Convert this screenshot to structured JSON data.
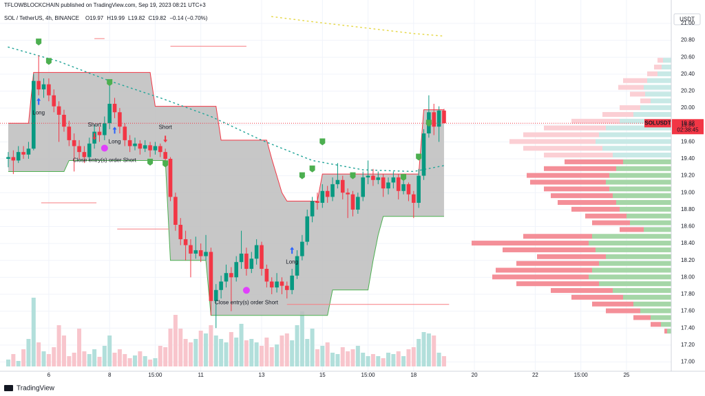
{
  "header": {
    "author_line": "TFLOWBLOCKCHAIN published on TradingView.com, Sep 19, 2023 08:21 UTC+3",
    "symbol": "SOL / TetherUS, 4h, BINANCE",
    "ohlc": [
      "O19.97",
      "H19.99",
      "L19.82",
      "C19.82",
      "−0.14 (−0.70%)"
    ],
    "currency": "USDT",
    "ticker": "SOLUSDT",
    "countdown": "02:38:45"
  },
  "footer": {
    "brand": "TradingView"
  },
  "chart_data": {
    "type": "candlestick",
    "up_color": "#089981",
    "down_color": "#f23645",
    "up_volume_color": "#b2dfdb",
    "down_volume_color": "#f8c5cc",
    "ylim": [
      16.89,
      21.13
    ],
    "yticks": [
      {
        "value": 17,
        "label": "17.00"
      },
      {
        "value": 17.2,
        "label": "17.20"
      },
      {
        "value": 17.4,
        "label": "17.40"
      },
      {
        "value": 17.6,
        "label": "17.60"
      },
      {
        "value": 17.8,
        "label": "17.80"
      },
      {
        "value": 18,
        "label": "18.00"
      },
      {
        "value": 18.2,
        "label": "18.20"
      },
      {
        "value": 18.4,
        "label": "18.40"
      },
      {
        "value": 18.6,
        "label": "18.60"
      },
      {
        "value": 18.8,
        "label": "18.80"
      },
      {
        "value": 19,
        "label": "19.00"
      },
      {
        "value": 19.2,
        "label": "19.20"
      },
      {
        "value": 19.4,
        "label": "19.40"
      },
      {
        "value": 19.6,
        "label": "19.60"
      },
      {
        "value": 19.8,
        "label": "19.80"
      },
      {
        "value": 20,
        "label": "20.00"
      },
      {
        "value": 20.2,
        "label": "20.20"
      },
      {
        "value": 20.4,
        "label": "20.40"
      },
      {
        "value": 20.6,
        "label": "20.60"
      },
      {
        "value": 20.8,
        "label": "20.80"
      },
      {
        "value": 21,
        "label": "21.00"
      }
    ],
    "xticks": [
      {
        "value": 8,
        "label": "6"
      },
      {
        "value": 20,
        "label": "8"
      },
      {
        "value": 29,
        "label": "15:00"
      },
      {
        "value": 38,
        "label": "11"
      },
      {
        "value": 50,
        "label": "13"
      },
      {
        "value": 62,
        "label": "15"
      },
      {
        "value": 71,
        "label": "15:00"
      },
      {
        "value": 80,
        "label": "18"
      },
      {
        "value": 92,
        "label": "20"
      },
      {
        "value": 104,
        "label": "22"
      },
      {
        "value": 113,
        "label": "15:00"
      },
      {
        "value": 122,
        "label": "25"
      }
    ],
    "grid": true,
    "candles": [
      [
        19.4,
        19.48,
        19.3,
        19.42
      ],
      [
        19.42,
        19.5,
        19.22,
        19.38
      ],
      [
        19.38,
        19.55,
        19.35,
        19.48
      ],
      [
        19.48,
        19.55,
        19.4,
        19.45
      ],
      [
        19.45,
        19.6,
        19.4,
        19.52
      ],
      [
        19.52,
        20.4,
        19.5,
        20.32
      ],
      [
        20.32,
        20.62,
        20.15,
        20.22
      ],
      [
        20.22,
        20.35,
        20.12,
        20.28
      ],
      [
        20.28,
        20.35,
        20.08,
        20.15
      ],
      [
        20.15,
        20.22,
        19.95,
        20.02
      ],
      [
        20.02,
        20.08,
        19.6,
        19.92
      ],
      [
        19.92,
        19.98,
        19.72,
        19.78
      ],
      [
        19.78,
        19.85,
        19.55,
        19.62
      ],
      [
        19.62,
        19.7,
        19.25,
        19.55
      ],
      [
        19.55,
        19.62,
        19.4,
        19.48
      ],
      [
        19.48,
        19.55,
        19.35,
        19.42
      ],
      [
        19.42,
        19.65,
        19.38,
        19.58
      ],
      [
        19.58,
        19.8,
        19.52,
        19.72
      ],
      [
        19.72,
        19.78,
        19.6,
        19.68
      ],
      [
        19.68,
        19.9,
        19.62,
        19.82
      ],
      [
        19.82,
        20.28,
        19.75,
        20.05
      ],
      [
        20.05,
        20.12,
        19.88,
        19.95
      ],
      [
        19.95,
        20,
        19.7,
        19.78
      ],
      [
        19.78,
        19.82,
        19.55,
        19.62
      ],
      [
        19.62,
        19.68,
        19.48,
        19.55
      ],
      [
        19.55,
        19.65,
        19.5,
        19.58
      ],
      [
        19.58,
        19.62,
        19.45,
        19.52
      ],
      [
        19.52,
        19.62,
        19.48,
        19.56
      ],
      [
        19.56,
        19.6,
        19.42,
        19.5
      ],
      [
        19.5,
        19.6,
        19.45,
        19.55
      ],
      [
        19.55,
        19.58,
        19.42,
        19.48
      ],
      [
        19.48,
        19.52,
        19.35,
        19.4
      ],
      [
        19.4,
        19.42,
        18.9,
        18.95
      ],
      [
        18.95,
        19,
        18.55,
        18.62
      ],
      [
        18.62,
        18.7,
        18.38,
        18.45
      ],
      [
        18.45,
        18.55,
        18.2,
        18.38
      ],
      [
        18.38,
        18.45,
        18,
        18.28
      ],
      [
        18.28,
        18.48,
        18.22,
        18.32
      ],
      [
        18.32,
        18.4,
        18.18,
        18.25
      ],
      [
        18.25,
        18.5,
        18.2,
        18.3
      ],
      [
        18.3,
        18.35,
        17.55,
        17.72
      ],
      [
        17.72,
        17.92,
        17.4,
        17.85
      ],
      [
        17.85,
        18.02,
        17.75,
        17.95
      ],
      [
        17.95,
        18.15,
        17.88,
        18.05
      ],
      [
        18.05,
        18.12,
        17.6,
        18
      ],
      [
        18,
        18.25,
        17.95,
        18.18
      ],
      [
        18.18,
        18.55,
        18.1,
        18.28
      ],
      [
        18.28,
        18.35,
        18.02,
        18.1
      ],
      [
        18.1,
        18.3,
        18.05,
        18.22
      ],
      [
        18.22,
        18.45,
        18.15,
        18.38
      ],
      [
        18.38,
        18.42,
        18.02,
        18.1
      ],
      [
        18.1,
        18.15,
        17.88,
        17.95
      ],
      [
        17.95,
        18,
        17.8,
        17.88
      ],
      [
        17.88,
        18.05,
        17.82,
        17.95
      ],
      [
        17.95,
        18,
        17.8,
        17.9
      ],
      [
        17.9,
        17.95,
        17.75,
        17.85
      ],
      [
        17.85,
        18.1,
        17.8,
        18.02
      ],
      [
        18.02,
        18.32,
        17.98,
        18.25
      ],
      [
        18.25,
        18.5,
        18.2,
        18.42
      ],
      [
        18.42,
        18.8,
        18.38,
        18.72
      ],
      [
        18.72,
        18.95,
        18.65,
        18.9
      ],
      [
        18.9,
        19,
        18.8,
        18.88
      ],
      [
        18.88,
        19.1,
        18.82,
        19.02
      ],
      [
        19.02,
        19.08,
        18.88,
        18.95
      ],
      [
        18.95,
        19.18,
        18.9,
        19.1
      ],
      [
        19.1,
        19.35,
        19.05,
        19.15
      ],
      [
        19.15,
        19.2,
        18.92,
        19
      ],
      [
        19,
        19.05,
        18.7,
        18.98
      ],
      [
        18.98,
        19.02,
        18.72,
        18.8
      ],
      [
        18.8,
        19,
        18.75,
        18.95
      ],
      [
        18.95,
        19.25,
        18.9,
        19.18
      ],
      [
        19.18,
        19.38,
        19.1,
        19.2
      ],
      [
        19.2,
        19.28,
        19.08,
        19.15
      ],
      [
        19.15,
        19.25,
        19.1,
        19.18
      ],
      [
        19.18,
        19.22,
        18.95,
        19.05
      ],
      [
        19.05,
        19.18,
        18.98,
        19.12
      ],
      [
        19.12,
        19.25,
        19.05,
        19.18
      ],
      [
        19.18,
        19.22,
        18.92,
        19.02
      ],
      [
        19.02,
        19.15,
        18.98,
        19.1
      ],
      [
        19.1,
        19.12,
        18.9,
        18.98
      ],
      [
        18.98,
        19.02,
        18.7,
        18.88
      ],
      [
        18.88,
        19.28,
        18.82,
        19.2
      ],
      [
        19.2,
        19.75,
        19.15,
        19.7
      ],
      [
        19.7,
        20.15,
        19.65,
        19.95
      ],
      [
        19.95,
        20.05,
        19.68,
        19.78
      ],
      [
        19.78,
        20.02,
        19.6,
        19.97
      ],
      [
        19.97,
        19.99,
        19.82,
        19.82
      ]
    ],
    "volumes": [
      10,
      18,
      8,
      25,
      40,
      100,
      35,
      22,
      18,
      28,
      60,
      45,
      15,
      20,
      55,
      22,
      18,
      25,
      14,
      30,
      45,
      20,
      25,
      18,
      12,
      16,
      22,
      15,
      10,
      12,
      30,
      28,
      55,
      75,
      55,
      40,
      35,
      40,
      52,
      48,
      60,
      45,
      40,
      35,
      50,
      42,
      62,
      38,
      40,
      35,
      30,
      42,
      28,
      32,
      45,
      48,
      38,
      60,
      80,
      40,
      55,
      25,
      30,
      35,
      20,
      18,
      28,
      22,
      25,
      30,
      20,
      15,
      18,
      15,
      12,
      20,
      18,
      22,
      15,
      25,
      28,
      40,
      50,
      48,
      45,
      20,
      15
    ],
    "channel": {
      "fill": "#bdbdbd",
      "upper_color": "#f23645",
      "lower_color": "#4caf50",
      "upper": [
        19.82,
        19.82,
        19.82,
        19.82,
        19.82,
        20.42,
        20.42,
        20.42,
        20.42,
        20.42,
        20.42,
        20.42,
        20.42,
        20.42,
        20.42,
        20.42,
        20.42,
        20.42,
        20.42,
        20.42,
        20.42,
        20.42,
        20.42,
        20.42,
        20.42,
        20.42,
        20.42,
        20.42,
        20.42,
        20.02,
        20.02,
        20.02,
        20.02,
        20.02,
        20.02,
        20.02,
        20.02,
        20.02,
        20.02,
        20.02,
        20.02,
        20.02,
        19.62,
        19.62,
        19.62,
        19.62,
        19.62,
        19.62,
        19.62,
        19.62,
        19.62,
        19.62,
        19.4,
        19.2,
        19,
        18.9,
        18.9,
        18.9,
        18.9,
        18.9,
        18.9,
        18.9,
        19.22,
        19.22,
        19.22,
        19.22,
        19.22,
        19.22,
        19.22,
        19.22,
        19.22,
        19.22,
        19.22,
        19.22,
        19.22,
        19.22,
        19.22,
        19.22,
        19.22,
        19.22,
        19.22,
        19.22,
        19.98,
        19.98,
        19.98,
        19.98,
        19.98
      ],
      "lower": [
        19.25,
        19.25,
        19.25,
        19.25,
        19.25,
        19.25,
        19.25,
        19.25,
        19.25,
        19.25,
        19.25,
        19.25,
        19.38,
        19.38,
        19.38,
        19.38,
        19.38,
        19.38,
        19.38,
        19.38,
        19.38,
        19.38,
        19.38,
        19.38,
        19.38,
        19.38,
        19.38,
        19.38,
        19.38,
        19.38,
        19.38,
        19.38,
        18.2,
        18.2,
        18.2,
        18.2,
        18.2,
        18.2,
        18.2,
        18.2,
        17.55,
        17.55,
        17.55,
        17.55,
        17.55,
        17.55,
        17.55,
        17.55,
        17.55,
        17.55,
        17.55,
        17.55,
        17.55,
        17.55,
        17.55,
        17.55,
        17.55,
        17.55,
        17.55,
        17.55,
        17.55,
        17.55,
        17.55,
        17.55,
        17.85,
        17.85,
        17.85,
        17.85,
        17.85,
        17.85,
        17.85,
        17.85,
        18.2,
        18.5,
        18.72,
        18.72,
        18.72,
        18.72,
        18.72,
        18.72,
        18.72,
        18.72,
        18.72,
        18.72,
        18.72,
        18.72,
        18.72
      ]
    },
    "moving_average": {
      "color": "#26a69a",
      "x": [
        0,
        10,
        20,
        30,
        40,
        50,
        60,
        70,
        80,
        86
      ],
      "values": [
        20.72,
        20.55,
        20.32,
        20.12,
        19.9,
        19.62,
        19.38,
        19.27,
        19.25,
        19.32
      ]
    },
    "upper_average": {
      "color": "#e6d84a",
      "x": [
        52,
        60,
        70,
        80,
        86
      ],
      "values": [
        21.08,
        21.02,
        20.95,
        20.88,
        20.85
      ]
    },
    "levels": {
      "color": "#f77c80",
      "from": [
        17,
        32,
        6.5,
        21.5,
        55
      ],
      "to": [
        19,
        47,
        17.4,
        31.7,
        87
      ],
      "values": [
        20.82,
        20.73,
        18.88,
        18.57,
        17.68
      ]
    },
    "flags": {
      "color": "#4caf50",
      "x": [
        6,
        8,
        20,
        28,
        31,
        58,
        60,
        62,
        68,
        78,
        81,
        83
      ],
      "values": [
        20.78,
        20.55,
        20.3,
        19.36,
        19.34,
        19.2,
        19.28,
        19.6,
        19.2,
        19.18,
        19.42,
        19.82
      ]
    },
    "signals": [
      {
        "text": "Long",
        "i": 6,
        "price": 19.94,
        "dir": "up"
      },
      {
        "text": "Short",
        "i": 17,
        "price": 19.8,
        "dir": "down"
      },
      {
        "text": "Long",
        "i": 21,
        "price": 19.6,
        "dir": "up"
      },
      {
        "text": "Short",
        "i": 31,
        "price": 19.77,
        "dir": "down"
      },
      {
        "text": "Close entry(s) order Short",
        "i": 19,
        "price": 19.38,
        "dir": "close"
      },
      {
        "text": "Close entry(s) order Short",
        "i": 47,
        "price": 17.7,
        "dir": "close"
      },
      {
        "text": "Long",
        "i": 56,
        "price": 18.18,
        "dir": "up"
      }
    ],
    "profile": {
      "value_area_top": 19.4,
      "buy_color": "#a5d6a7",
      "sell_color": "#f48f98",
      "buy_light_color": "#c8e9e6",
      "sell_light_color": "#fbcfd4",
      "prices": [
        20.56,
        20.48,
        20.4,
        20.32,
        20.24,
        20.16,
        20.08,
        20,
        19.92,
        19.84,
        19.76,
        19.68,
        19.6,
        19.52,
        19.44,
        19.36,
        19.28,
        19.2,
        19.12,
        19.04,
        18.96,
        18.88,
        18.8,
        18.72,
        18.64,
        18.56,
        18.48,
        18.4,
        18.32,
        18.24,
        18.16,
        18.08,
        18,
        17.92,
        17.84,
        17.76,
        17.68,
        17.6,
        17.52,
        17.44,
        17.36
      ],
      "buy": [
        12,
        14,
        20,
        35,
        40,
        38,
        30,
        45,
        55,
        75,
        95,
        105,
        110,
        100,
        85,
        70,
        80,
        90,
        95,
        90,
        85,
        80,
        75,
        65,
        60,
        40,
        115,
        120,
        110,
        95,
        105,
        115,
        120,
        105,
        85,
        70,
        55,
        45,
        30,
        15,
        6
      ],
      "sell": [
        8,
        11,
        15,
        35,
        37,
        22,
        15,
        30,
        45,
        70,
        90,
        110,
        125,
        115,
        100,
        85,
        105,
        120,
        110,
        95,
        90,
        85,
        70,
        60,
        55,
        35,
        100,
        170,
        135,
        100,
        120,
        140,
        140,
        120,
        90,
        75,
        60,
        50,
        25,
        15,
        4
      ]
    }
  }
}
